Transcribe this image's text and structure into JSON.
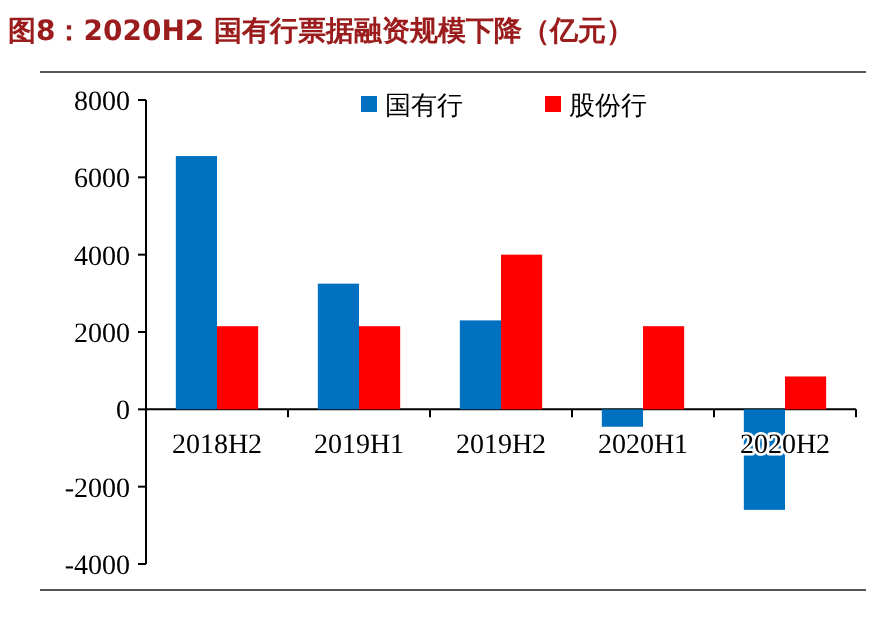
{
  "chart_data": {
    "type": "bar",
    "title": "图8：2020H2 国有行票据融资规模下降（亿元）",
    "categories": [
      "2018H2",
      "2019H1",
      "2019H2",
      "2020H1",
      "2020H2"
    ],
    "series": [
      {
        "name": "国有行",
        "color": "#0070c0",
        "values": [
          6550,
          3250,
          2300,
          -450,
          -2600
        ]
      },
      {
        "name": "股份行",
        "color": "#ff0000",
        "values": [
          2150,
          2150,
          4000,
          2150,
          850
        ]
      }
    ],
    "ylim": [
      -4000,
      8000
    ],
    "yticks": [
      -4000,
      -2000,
      0,
      2000,
      4000,
      6000,
      8000
    ],
    "legend": "top",
    "grid": false
  }
}
